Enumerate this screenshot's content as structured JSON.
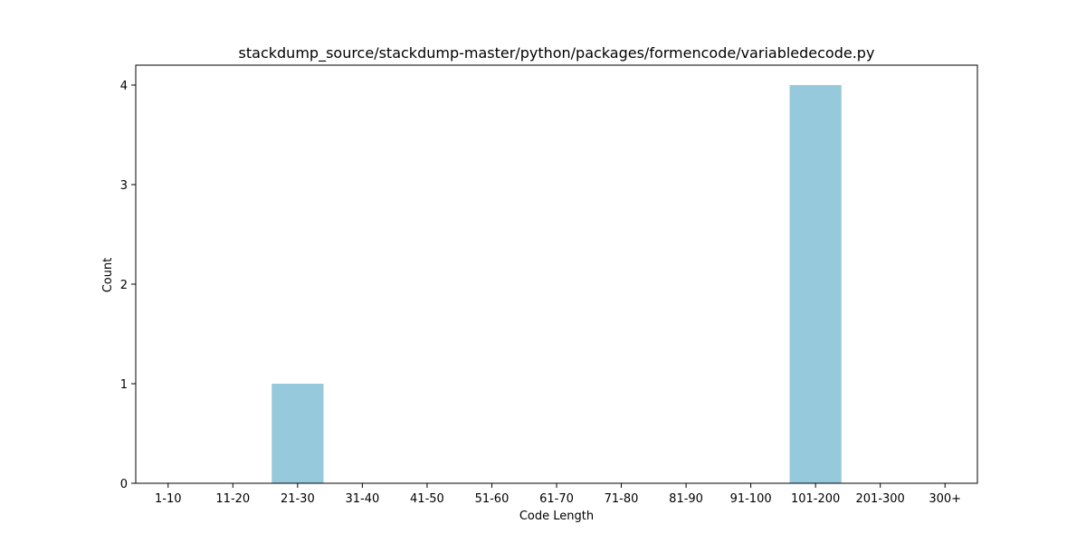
{
  "chart_data": {
    "type": "bar",
    "title": "stackdump_source/stackdump-master/python/packages/formencode/variabledecode.py",
    "xlabel": "Code Length",
    "ylabel": "Count",
    "categories": [
      "1-10",
      "11-20",
      "21-30",
      "31-40",
      "41-50",
      "51-60",
      "61-70",
      "71-80",
      "81-90",
      "91-100",
      "101-200",
      "201-300",
      "300+"
    ],
    "values": [
      0,
      0,
      1,
      0,
      0,
      0,
      0,
      0,
      0,
      0,
      4,
      0,
      0
    ],
    "yticks": [
      "0",
      "1",
      "2",
      "3",
      "4"
    ],
    "ylim": [
      0,
      4.2
    ],
    "grid": false,
    "colors": {
      "bar": "#96c9dc",
      "axis": "#000000",
      "background": "#ffffff"
    }
  }
}
